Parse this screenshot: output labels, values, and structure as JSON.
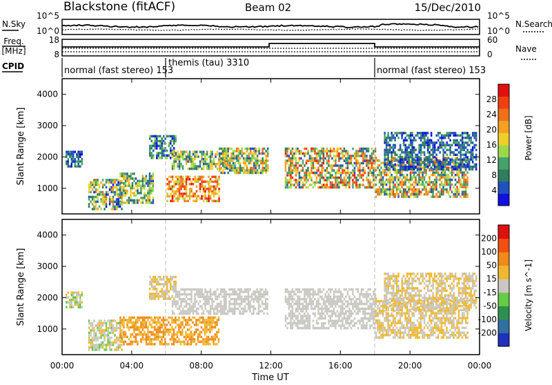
{
  "header": {
    "station": "Blackstone (fitACF)",
    "beam": "Beam 02",
    "date": "15/Dec/2010"
  },
  "noise_panel": {
    "left_label": "N.Sky",
    "right_label": "N.Search",
    "left_ticks": [
      "10^5",
      "10^0"
    ],
    "right_ticks": [
      "10^5",
      "10^0"
    ]
  },
  "freq_panel": {
    "left_label_1": "Freq.",
    "left_label_2": "[MHz]",
    "right_label": "Nave",
    "left_ticks": [
      "18",
      "8"
    ],
    "right_ticks": [
      "60",
      "0"
    ],
    "cpid_label": "CPID"
  },
  "cpid_segments": [
    {
      "label": "normal (fast stereo) 153",
      "start_h": 0
    },
    {
      "label": "themis (tau) 3310",
      "start_h": 6
    },
    {
      "label": "normal (fast stereo) 153",
      "start_h": 18
    }
  ],
  "chart_data": [
    {
      "type": "heatmap",
      "name": "power",
      "ylabel": "Slant Range [km]",
      "xlabel": "Time UT",
      "x_ticks": [
        "00:00",
        "04:00",
        "08:00",
        "12:00",
        "16:00",
        "20:00",
        "00:00"
      ],
      "xlim_hours": [
        0,
        24
      ],
      "y_ticks": [
        1000,
        2000,
        3000,
        4000
      ],
      "ylim": [
        180,
        4500
      ],
      "colorbar": {
        "label": "Power [dB]",
        "ticks": [
          "4",
          "8",
          "12",
          "16",
          "20",
          "24",
          "28"
        ],
        "colors": [
          "#1010e0",
          "#2050c0",
          "#2e7d5e",
          "#44a36a",
          "#9bd94a",
          "#f0d028",
          "#f5a020",
          "#f07018",
          "#f04010",
          "#e01010"
        ]
      },
      "regions": [
        {
          "t0": 0.2,
          "t1": 1.1,
          "r0": 1700,
          "r1": 2200,
          "vmin": 0,
          "vmax": 3
        },
        {
          "t0": 1.5,
          "t1": 3.4,
          "r0": 300,
          "r1": 1300,
          "vmin": 0,
          "vmax": 7
        },
        {
          "t0": 3.3,
          "t1": 5.2,
          "r0": 500,
          "r1": 1500,
          "vmin": 1,
          "vmax": 6
        },
        {
          "t0": 5.0,
          "t1": 6.5,
          "r0": 2000,
          "r1": 2700,
          "vmin": 0,
          "vmax": 4
        },
        {
          "t0": 6.0,
          "t1": 9.0,
          "r0": 600,
          "r1": 1400,
          "vmin": 4,
          "vmax": 9
        },
        {
          "t0": 6.3,
          "t1": 9.5,
          "r0": 1600,
          "r1": 2200,
          "vmin": 1,
          "vmax": 6
        },
        {
          "t0": 9.0,
          "t1": 11.8,
          "r0": 1500,
          "r1": 2300,
          "vmin": 1,
          "vmax": 7
        },
        {
          "t0": 12.8,
          "t1": 18.0,
          "r0": 1000,
          "r1": 2300,
          "vmin": 1,
          "vmax": 9
        },
        {
          "t0": 18.0,
          "t1": 23.3,
          "r0": 700,
          "r1": 2000,
          "vmin": 1,
          "vmax": 8
        },
        {
          "t0": 18.5,
          "t1": 23.8,
          "r0": 1600,
          "r1": 2800,
          "vmin": 0,
          "vmax": 3
        }
      ]
    },
    {
      "type": "heatmap",
      "name": "velocity",
      "ylabel": "Slant Range [km]",
      "xlabel": "Time UT",
      "x_ticks": [
        "00:00",
        "04:00",
        "08:00",
        "12:00",
        "16:00",
        "20:00",
        "00:00"
      ],
      "xlim_hours": [
        0,
        24
      ],
      "y_ticks": [
        1000,
        2000,
        3000,
        4000
      ],
      "ylim": [
        180,
        4500
      ],
      "colorbar": {
        "label": "Velocity [m s^-1]",
        "ticks": [
          "200",
          "100",
          "50",
          "15",
          "-15",
          "-50",
          "-100",
          "-200"
        ],
        "colors": [
          "#2030c0",
          "#3070a0",
          "#2e9050",
          "#66cc44",
          "#c8c8c0",
          "#f0b830",
          "#f08a18",
          "#f05010",
          "#e01010"
        ]
      },
      "regions": [
        {
          "t0": 0.2,
          "t1": 1.1,
          "r0": 1700,
          "r1": 2200,
          "vmin": 3,
          "vmax": 5
        },
        {
          "t0": 1.5,
          "t1": 3.4,
          "r0": 300,
          "r1": 1300,
          "vmin": 3,
          "vmax": 5
        },
        {
          "t0": 3.3,
          "t1": 9.0,
          "r0": 500,
          "r1": 1400,
          "vmin": 5,
          "vmax": 6
        },
        {
          "t0": 5.0,
          "t1": 6.5,
          "r0": 2000,
          "r1": 2700,
          "vmin": 4,
          "vmax": 5
        },
        {
          "t0": 6.3,
          "t1": 11.8,
          "r0": 1500,
          "r1": 2300,
          "vmin": 4,
          "vmax": 4
        },
        {
          "t0": 12.8,
          "t1": 18.0,
          "r0": 1000,
          "r1": 2300,
          "vmin": 4,
          "vmax": 4
        },
        {
          "t0": 18.0,
          "t1": 23.3,
          "r0": 700,
          "r1": 2000,
          "vmin": 4,
          "vmax": 5
        },
        {
          "t0": 18.5,
          "t1": 23.8,
          "r0": 1600,
          "r1": 2800,
          "vmin": 4,
          "vmax": 5
        }
      ]
    }
  ]
}
